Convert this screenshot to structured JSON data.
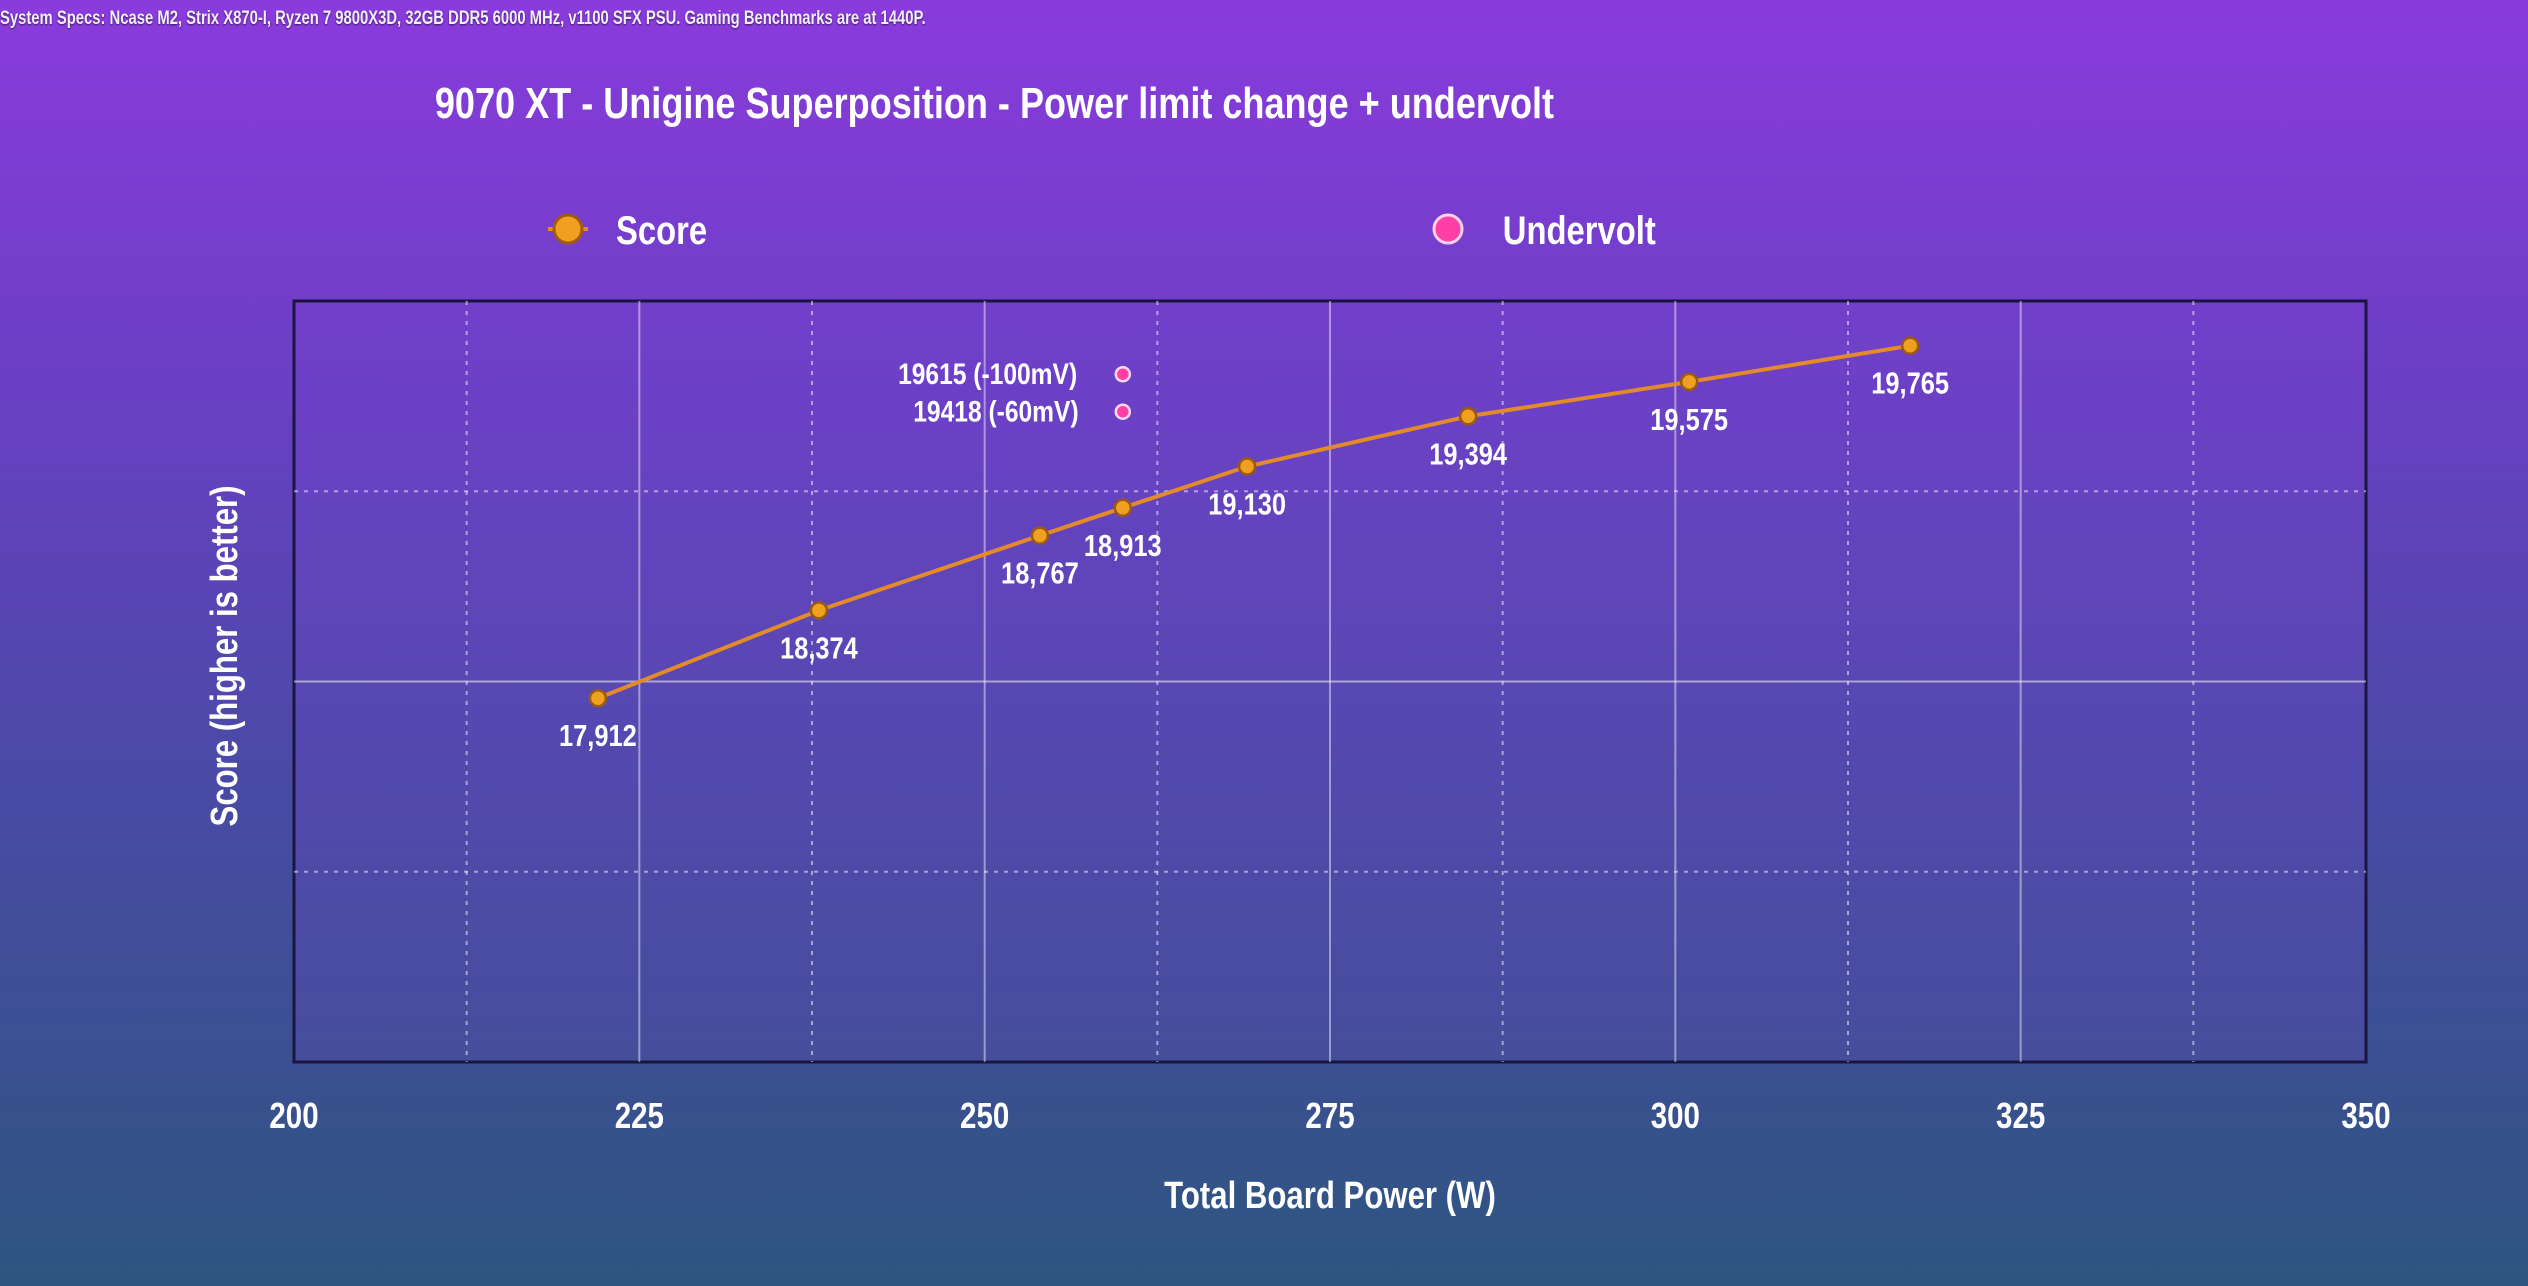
{
  "header": {
    "system_specs": "System Specs: Ncase M2, Strix X870-I, Ryzen 7 9800X3D, 32GB DDR5 6000 MHz, v1100 SFX PSU. Gaming Benchmarks are at 1440P."
  },
  "chart_data": {
    "type": "line",
    "title": "9070 XT - Unigine Superposition - Power limit change + undervolt",
    "xlabel": "Total Board Power (W)",
    "ylabel": "Score (higher is better)",
    "xlim": [
      200,
      350
    ],
    "xticks": [
      200,
      225,
      250,
      275,
      300,
      325,
      350
    ],
    "ylim": [
      16000,
      20000
    ],
    "y_tick_labels_shown": false,
    "grid": true,
    "legend_position": "top",
    "series": [
      {
        "name": "Score",
        "color": "#f0a020",
        "line_color": "#e38a2a",
        "x": [
          222,
          238,
          254,
          260,
          269,
          285,
          301,
          317
        ],
        "y": [
          17912,
          18374,
          18767,
          18913,
          19130,
          19394,
          19575,
          19765
        ],
        "labels": [
          "17,912",
          "18,374",
          "18,767",
          "18,913",
          "19,130",
          "19,394",
          "19,575",
          "19,765"
        ]
      },
      {
        "name": "Undervolt",
        "color": "#ff3fa8",
        "x": [
          260,
          260
        ],
        "y": [
          19615,
          19418
        ],
        "labels": [
          "19615 (-100mV)",
          "19418 (-60mV)"
        ]
      }
    ]
  }
}
